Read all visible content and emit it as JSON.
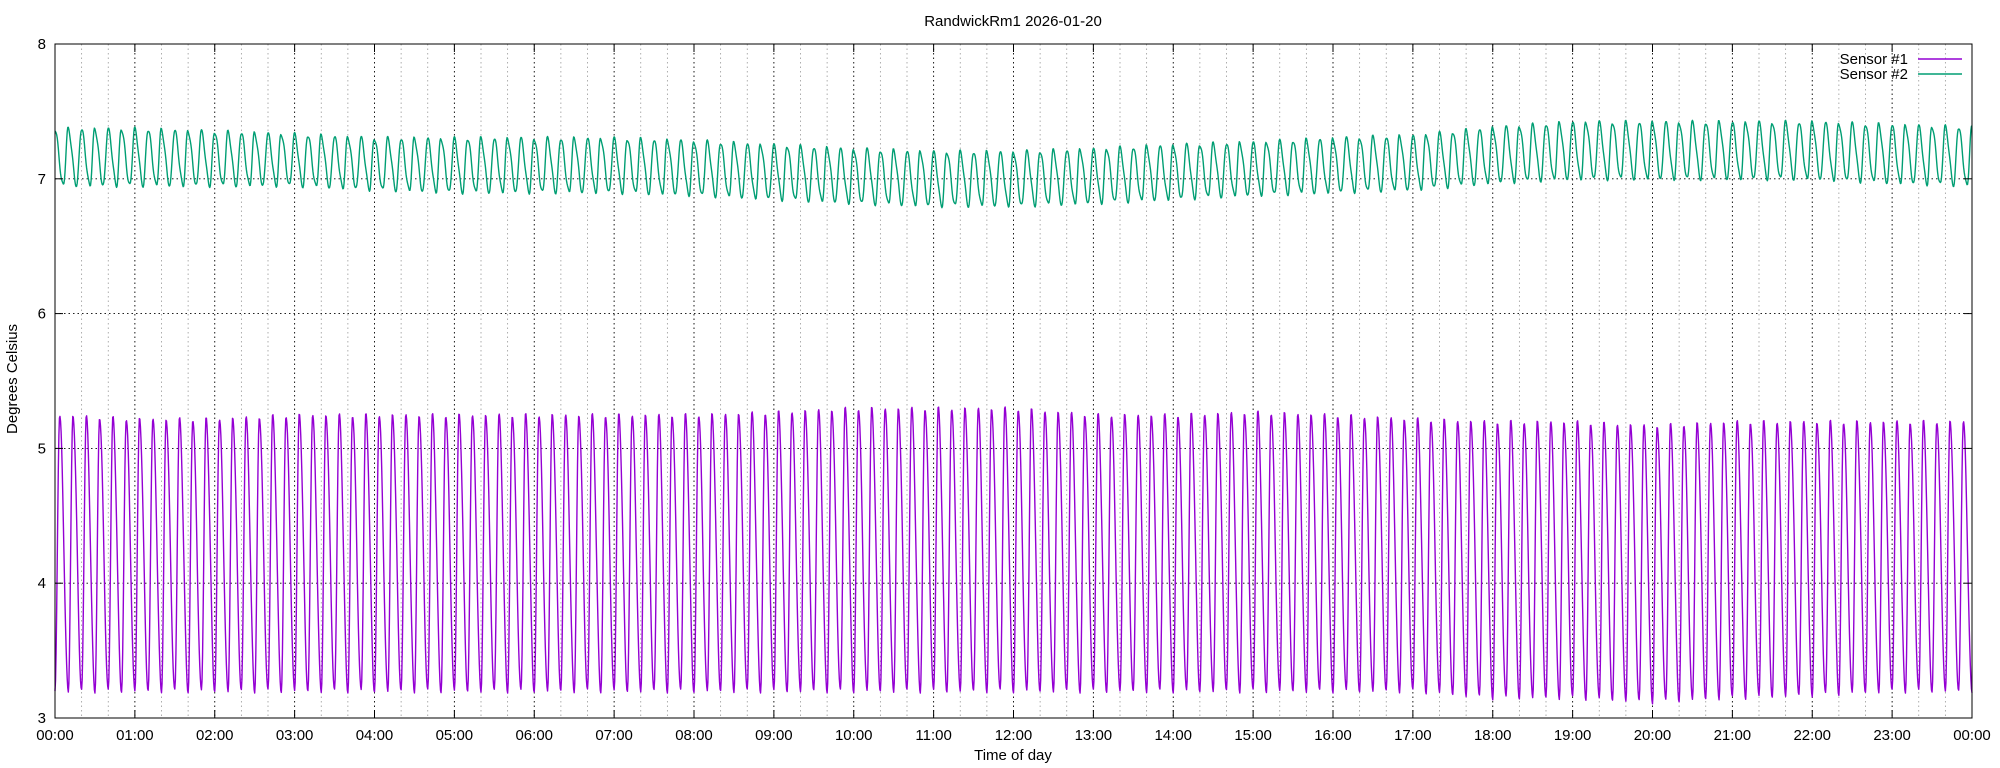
{
  "chart_data": {
    "type": "line",
    "title": "RandwickRm1 2026-01-20",
    "xlabel": "Time of day",
    "ylabel": "Degrees Celsius",
    "x_unit": "hours",
    "xlim": [
      0,
      24
    ],
    "ylim": [
      3,
      8
    ],
    "x_ticks": [
      {
        "value": 0,
        "label": "00:00"
      },
      {
        "value": 1,
        "label": "01:00"
      },
      {
        "value": 2,
        "label": "02:00"
      },
      {
        "value": 3,
        "label": "03:00"
      },
      {
        "value": 4,
        "label": "04:00"
      },
      {
        "value": 5,
        "label": "05:00"
      },
      {
        "value": 6,
        "label": "06:00"
      },
      {
        "value": 7,
        "label": "07:00"
      },
      {
        "value": 8,
        "label": "08:00"
      },
      {
        "value": 9,
        "label": "09:00"
      },
      {
        "value": 10,
        "label": "10:00"
      },
      {
        "value": 11,
        "label": "11:00"
      },
      {
        "value": 12,
        "label": "12:00"
      },
      {
        "value": 13,
        "label": "13:00"
      },
      {
        "value": 14,
        "label": "14:00"
      },
      {
        "value": 15,
        "label": "15:00"
      },
      {
        "value": 16,
        "label": "16:00"
      },
      {
        "value": 17,
        "label": "17:00"
      },
      {
        "value": 18,
        "label": "18:00"
      },
      {
        "value": 19,
        "label": "19:00"
      },
      {
        "value": 20,
        "label": "20:00"
      },
      {
        "value": 21,
        "label": "21:00"
      },
      {
        "value": 22,
        "label": "22:00"
      },
      {
        "value": 23,
        "label": "23:00"
      },
      {
        "value": 24,
        "label": "00:00"
      }
    ],
    "y_ticks": [
      {
        "value": 3,
        "label": "3"
      },
      {
        "value": 4,
        "label": "4"
      },
      {
        "value": 5,
        "label": "5"
      },
      {
        "value": 6,
        "label": "6"
      },
      {
        "value": 7,
        "label": "7"
      },
      {
        "value": 8,
        "label": "8"
      }
    ],
    "grid": "dotted major and minor",
    "legend": "top-right",
    "series": [
      {
        "name": "Sensor #1",
        "color": "#9400d3",
        "pattern": "sawtooth oscillation, period about 10 minutes",
        "period_minutes": 10,
        "min_by_hour": [
          3.2,
          3.2,
          3.2,
          3.2,
          3.2,
          3.2,
          3.2,
          3.2,
          3.2,
          3.2,
          3.2,
          3.2,
          3.2,
          3.2,
          3.2,
          3.2,
          3.2,
          3.2,
          3.15,
          3.15,
          3.12,
          3.15,
          3.17,
          3.2,
          3.2
        ],
        "max_by_hour": [
          5.25,
          5.22,
          5.22,
          5.25,
          5.25,
          5.25,
          5.25,
          5.25,
          5.25,
          5.27,
          5.3,
          5.3,
          5.3,
          5.25,
          5.25,
          5.27,
          5.25,
          5.22,
          5.2,
          5.2,
          5.17,
          5.2,
          5.2,
          5.2,
          5.2
        ]
      },
      {
        "name": "Sensor #2",
        "color": "#009e73",
        "pattern": "sawtooth oscillation, period about 10 minutes",
        "period_minutes": 10,
        "min_by_hour": [
          6.95,
          6.95,
          6.95,
          6.95,
          6.92,
          6.9,
          6.9,
          6.9,
          6.88,
          6.85,
          6.82,
          6.8,
          6.8,
          6.82,
          6.85,
          6.88,
          6.9,
          6.92,
          6.97,
          7.0,
          7.0,
          7.0,
          7.0,
          6.97,
          6.95
        ],
        "max_by_hour": [
          7.37,
          7.37,
          7.35,
          7.33,
          7.3,
          7.3,
          7.3,
          7.3,
          7.28,
          7.25,
          7.22,
          7.2,
          7.2,
          7.22,
          7.25,
          7.27,
          7.3,
          7.32,
          7.38,
          7.42,
          7.42,
          7.42,
          7.42,
          7.4,
          7.38
        ]
      }
    ]
  }
}
